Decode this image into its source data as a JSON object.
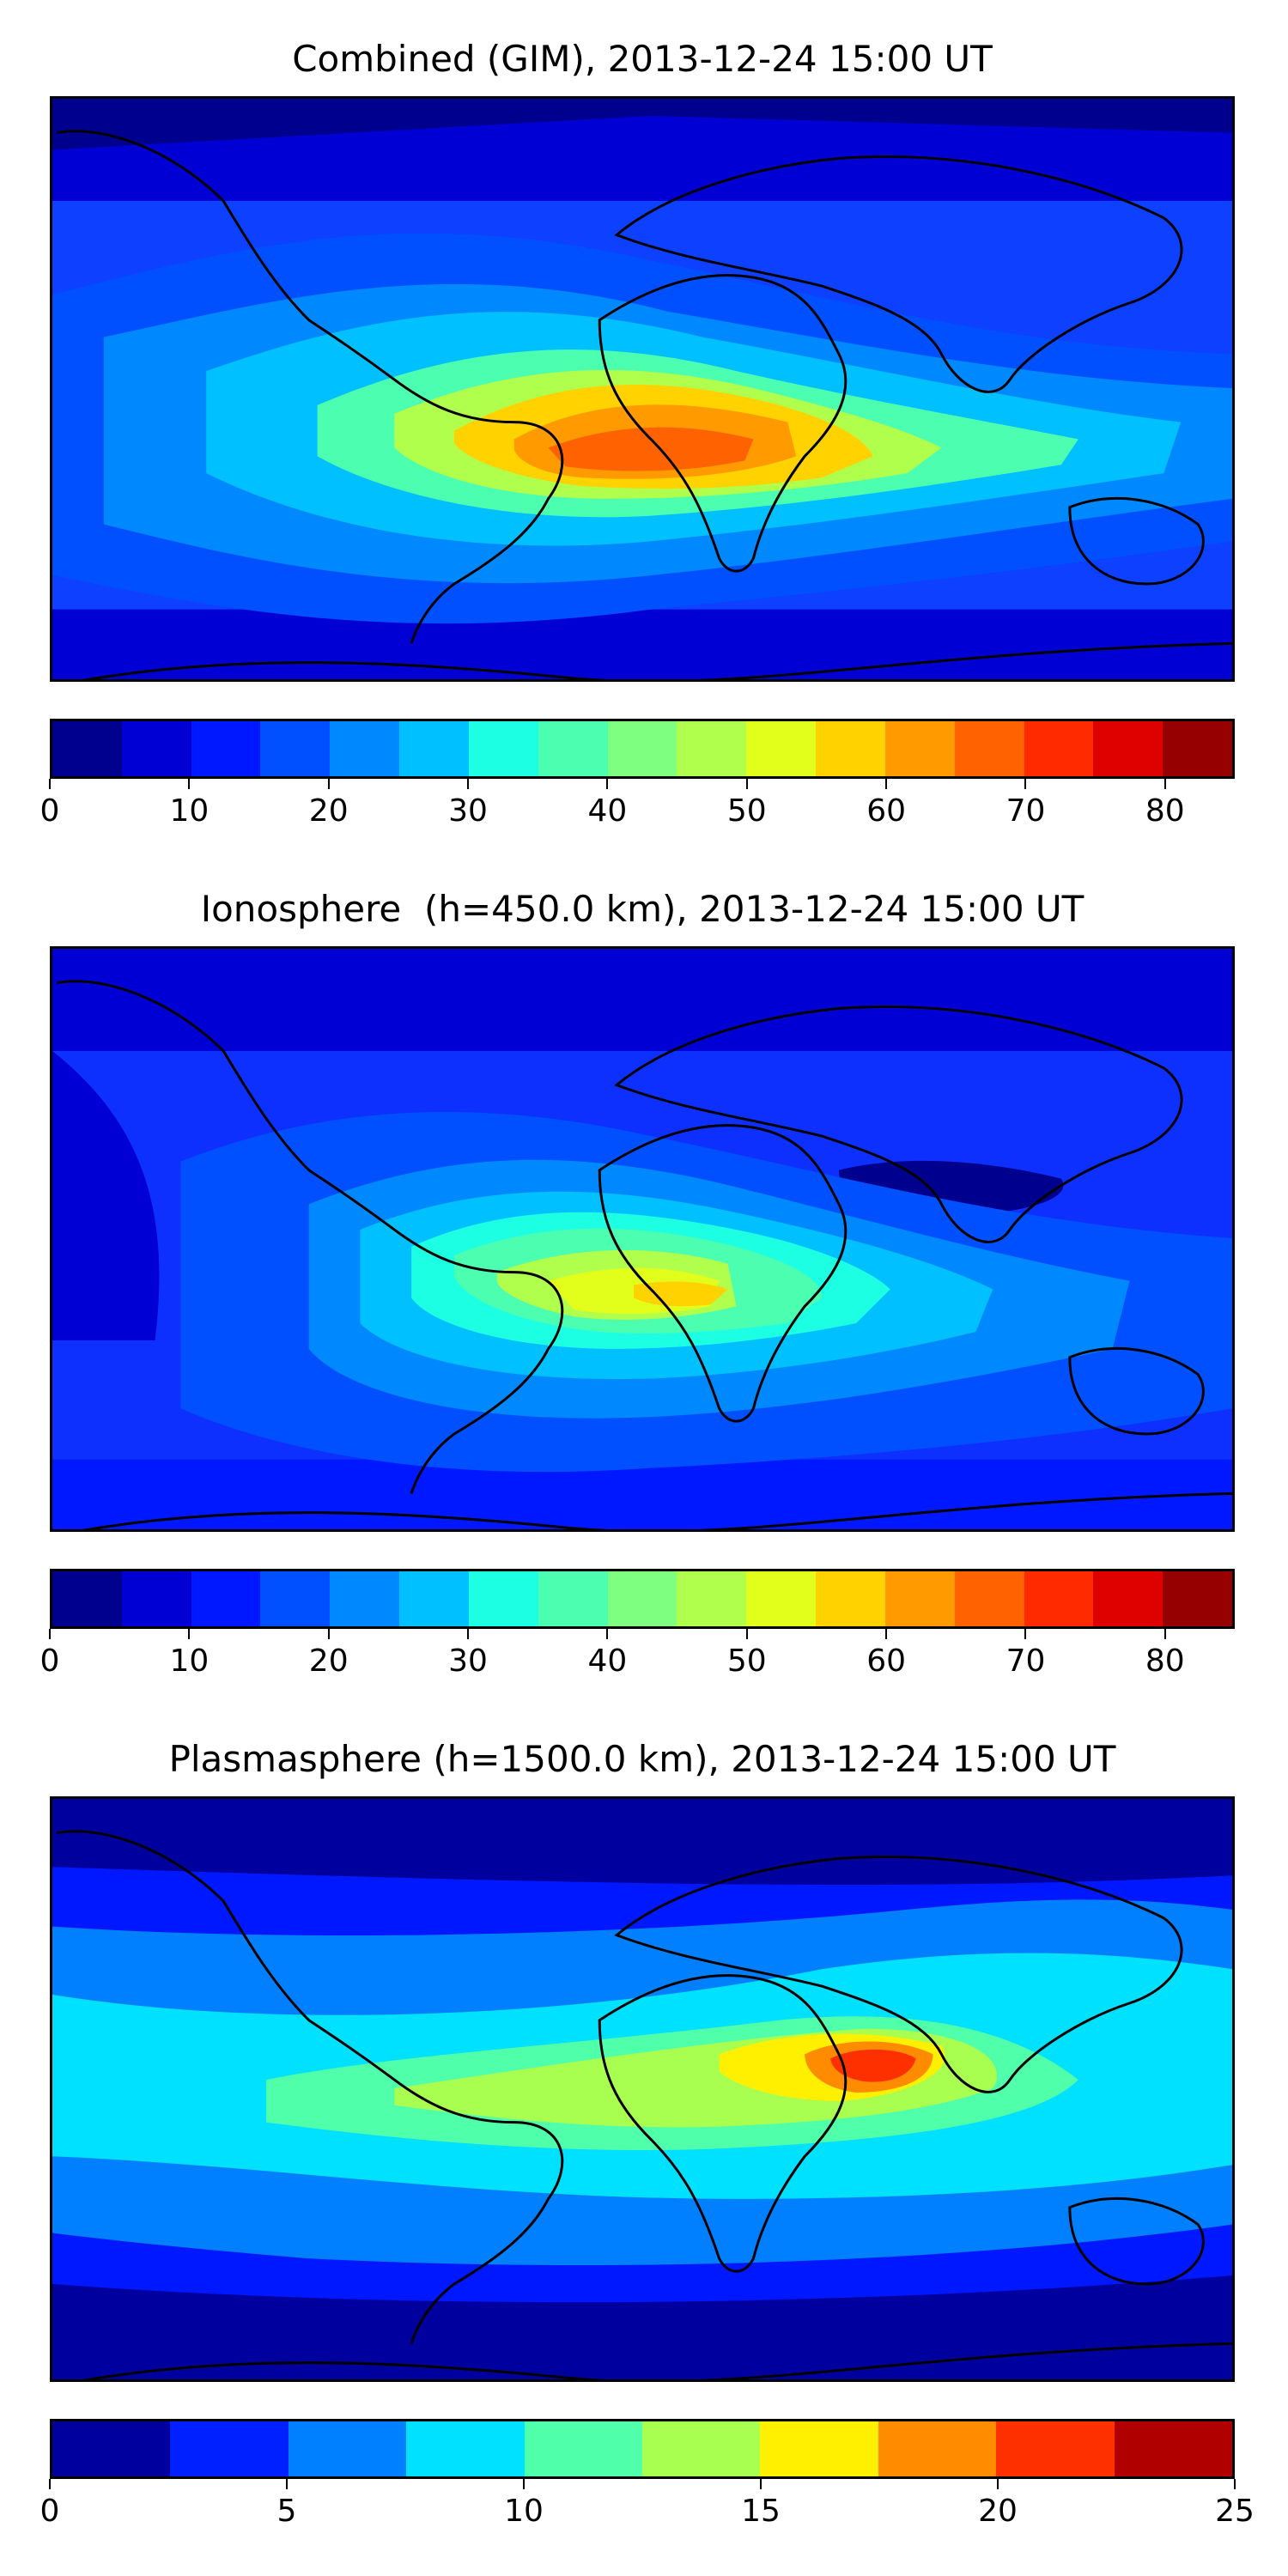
{
  "panels": [
    {
      "title": "Combined (GIM), 2013-12-24 15:00 UT",
      "background": "#0d40ff",
      "colorbar": {
        "colors": [
          "#00008f",
          "#0000d4",
          "#0018ff",
          "#0050ff",
          "#0088ff",
          "#00c0ff",
          "#1cffe2",
          "#4cffb0",
          "#7eff80",
          "#b0ff4c",
          "#e2ff1c",
          "#ffd200",
          "#ff9a00",
          "#ff6200",
          "#ff2a00",
          "#df0000",
          "#970000"
        ],
        "ticks": [
          {
            "value": 0,
            "label": "0"
          },
          {
            "value": 10,
            "label": "10"
          },
          {
            "value": 20,
            "label": "20"
          },
          {
            "value": 30,
            "label": "30"
          },
          {
            "value": 40,
            "label": "40"
          },
          {
            "value": 50,
            "label": "50"
          },
          {
            "value": 60,
            "label": "60"
          },
          {
            "value": 70,
            "label": "70"
          },
          {
            "value": 80,
            "label": "80"
          }
        ],
        "min": 0,
        "max": 85
      }
    },
    {
      "title": "Ionosphere  (h=450.0 km), 2013-12-24 15:00 UT",
      "background": "#0d30ff",
      "colorbar": {
        "colors": [
          "#00008f",
          "#0000d4",
          "#0018ff",
          "#0050ff",
          "#0088ff",
          "#00c0ff",
          "#1cffe2",
          "#4cffb0",
          "#7eff80",
          "#b0ff4c",
          "#e2ff1c",
          "#ffd200",
          "#ff9a00",
          "#ff6200",
          "#ff2a00",
          "#df0000",
          "#970000"
        ],
        "ticks": [
          {
            "value": 0,
            "label": "0"
          },
          {
            "value": 10,
            "label": "10"
          },
          {
            "value": 20,
            "label": "20"
          },
          {
            "value": 30,
            "label": "30"
          },
          {
            "value": 40,
            "label": "40"
          },
          {
            "value": 50,
            "label": "50"
          },
          {
            "value": 60,
            "label": "60"
          },
          {
            "value": 70,
            "label": "70"
          },
          {
            "value": 80,
            "label": "80"
          }
        ],
        "min": 0,
        "max": 85
      }
    },
    {
      "title": "Plasmasphere (h=1500.0 km), 2013-12-24 15:00 UT",
      "background": "#0018ff",
      "colorbar": {
        "colors": [
          "#00009f",
          "#0020ff",
          "#0080ff",
          "#00e0ff",
          "#50ffaa",
          "#a8ff50",
          "#fff000",
          "#ff8c00",
          "#ff3000",
          "#b00000"
        ],
        "ticks": [
          {
            "value": 0,
            "label": "0"
          },
          {
            "value": 5,
            "label": "5"
          },
          {
            "value": 10,
            "label": "10"
          },
          {
            "value": 15,
            "label": "15"
          },
          {
            "value": 20,
            "label": "20"
          },
          {
            "value": 25,
            "label": "25"
          }
        ],
        "min": 0,
        "max": 25
      }
    }
  ]
}
